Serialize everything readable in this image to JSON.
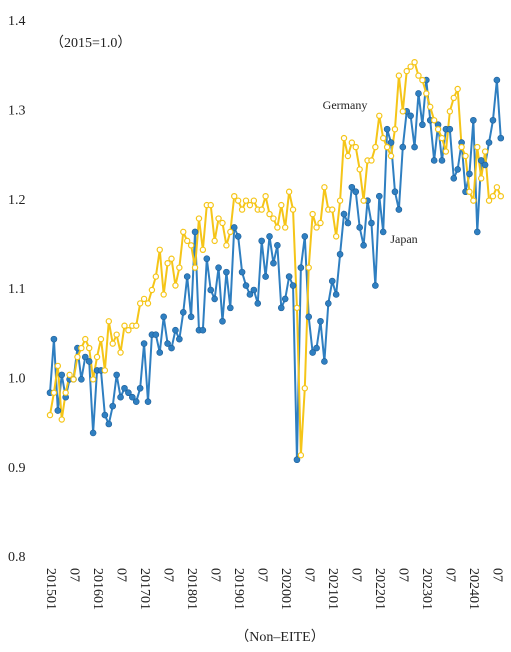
{
  "chart_data": {
    "type": "line",
    "annotations": [
      "（2015=1.0）"
    ],
    "x_label": "（Non–EITE）",
    "categories": [
      "201501",
      null,
      null,
      null,
      null,
      null,
      "07",
      null,
      null,
      null,
      null,
      null,
      "201601",
      null,
      null,
      null,
      null,
      null,
      "07",
      null,
      null,
      null,
      null,
      null,
      "201701",
      null,
      null,
      null,
      null,
      null,
      "07",
      null,
      null,
      null,
      null,
      null,
      "201801",
      null,
      null,
      null,
      null,
      null,
      "07",
      null,
      null,
      null,
      null,
      null,
      "201901",
      null,
      null,
      null,
      null,
      null,
      "07",
      null,
      null,
      null,
      null,
      null,
      "202001",
      null,
      null,
      null,
      null,
      null,
      "07",
      null,
      null,
      null,
      null,
      null,
      "202101",
      null,
      null,
      null,
      null,
      null,
      "07",
      null,
      null,
      null,
      null,
      null,
      "202201",
      null,
      null,
      null,
      null,
      null,
      "07",
      null,
      null,
      null,
      null,
      null,
      "202301",
      null,
      null,
      null,
      null,
      null,
      "07",
      null,
      null,
      null,
      null,
      null,
      "202401",
      null,
      null,
      null,
      null,
      null,
      "07",
      null
    ],
    "series": [
      {
        "name": "Japan",
        "color": "#2f7fc1",
        "marker": "filled",
        "values": [
          0.985,
          1.045,
          0.965,
          1.005,
          0.98,
          1.0,
          1.0,
          1.035,
          1.0,
          1.025,
          1.02,
          0.94,
          1.01,
          1.01,
          0.96,
          0.95,
          0.97,
          1.005,
          0.98,
          0.99,
          0.985,
          0.98,
          0.975,
          0.99,
          1.04,
          0.975,
          1.05,
          1.05,
          1.03,
          1.07,
          1.04,
          1.035,
          1.055,
          1.045,
          1.075,
          1.115,
          1.07,
          1.165,
          1.055,
          1.055,
          1.135,
          1.1,
          1.09,
          1.125,
          1.065,
          1.12,
          1.08,
          1.17,
          1.16,
          1.12,
          1.105,
          1.095,
          1.1,
          1.085,
          1.155,
          1.115,
          1.16,
          1.13,
          1.15,
          1.08,
          1.09,
          1.115,
          1.105,
          0.91,
          1.125,
          1.16,
          1.07,
          1.03,
          1.035,
          1.065,
          1.02,
          1.085,
          1.11,
          1.095,
          1.14,
          1.185,
          1.175,
          1.215,
          1.21,
          1.17,
          1.15,
          1.2,
          1.175,
          1.105,
          1.205,
          1.165,
          1.28,
          1.265,
          1.21,
          1.19,
          1.26,
          1.3,
          1.295,
          1.26,
          1.32,
          1.285,
          1.335,
          1.29,
          1.245,
          1.285,
          1.245,
          1.28,
          1.28,
          1.225,
          1.235,
          1.265,
          1.21,
          1.23,
          1.29,
          1.165,
          1.245,
          1.24,
          1.265,
          1.29,
          1.335,
          1.27
        ]
      },
      {
        "name": "Germany",
        "color": "#f5c518",
        "marker": "open",
        "values": [
          0.96,
          0.985,
          1.015,
          0.955,
          0.985,
          1.005,
          1.0,
          1.025,
          1.035,
          1.045,
          1.035,
          1.0,
          1.025,
          1.045,
          1.01,
          1.065,
          1.04,
          1.05,
          1.03,
          1.06,
          1.055,
          1.06,
          1.06,
          1.085,
          1.09,
          1.085,
          1.1,
          1.115,
          1.145,
          1.095,
          1.13,
          1.135,
          1.105,
          1.125,
          1.165,
          1.155,
          1.15,
          1.125,
          1.18,
          1.145,
          1.195,
          1.195,
          1.155,
          1.18,
          1.175,
          1.15,
          1.165,
          1.205,
          1.2,
          1.19,
          1.2,
          1.195,
          1.2,
          1.19,
          1.19,
          1.205,
          1.185,
          1.18,
          1.17,
          1.195,
          1.17,
          1.21,
          1.19,
          1.08,
          0.915,
          0.99,
          1.125,
          1.185,
          1.17,
          1.175,
          1.215,
          1.19,
          1.19,
          1.16,
          1.2,
          1.27,
          1.25,
          1.265,
          1.26,
          1.235,
          1.2,
          1.245,
          1.245,
          1.26,
          1.295,
          1.27,
          1.26,
          1.25,
          1.28,
          1.34,
          1.3,
          1.345,
          1.35,
          1.355,
          1.34,
          1.335,
          1.32,
          1.305,
          1.29,
          1.28,
          1.27,
          1.255,
          1.3,
          1.315,
          1.325,
          1.26,
          1.25,
          1.21,
          1.2,
          1.26,
          1.225,
          1.255,
          1.2,
          1.205,
          1.215,
          1.205
        ]
      }
    ],
    "ylim": [
      0.8,
      1.4
    ],
    "yticks": [
      {
        "value": 0.8,
        "label": "0.8"
      },
      {
        "value": 0.9,
        "label": "0.9"
      },
      {
        "value": 1.0,
        "label": "1.0"
      },
      {
        "value": 1.1,
        "label": "1.1"
      },
      {
        "value": 1.2,
        "label": "1.2"
      },
      {
        "value": 1.3,
        "label": "1.3"
      },
      {
        "value": 1.4,
        "label": "1.4"
      }
    ],
    "grid": false
  }
}
